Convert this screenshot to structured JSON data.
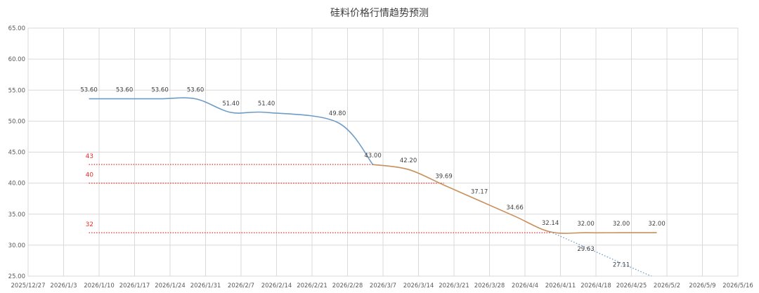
{
  "chart_data": {
    "type": "line",
    "title": "硅料价格行情趋势预测",
    "xlabel": "",
    "ylabel": "",
    "ylim": [
      25,
      65
    ],
    "yticks": [
      "25.00",
      "30.00",
      "35.00",
      "40.00",
      "45.00",
      "50.00",
      "55.00",
      "60.00",
      "65.00"
    ],
    "xlim": [
      "2025-12-27",
      "2026-05-16"
    ],
    "xticks": [
      "2025/12/27",
      "2026/1/3",
      "2026/1/10",
      "2026/1/17",
      "2026/1/24",
      "2026/1/31",
      "2026/2/7",
      "2026/2/14",
      "2026/2/21",
      "2026/2/28",
      "2026/3/7",
      "2026/3/14",
      "2026/3/21",
      "2026/3/28",
      "2026/4/4",
      "2026/4/11",
      "2026/4/18",
      "2026/4/25",
      "2026/5/2",
      "2026/5/9",
      "2026/5/16"
    ],
    "grid": true,
    "legend": "none",
    "series": [
      {
        "color": "#6e9cc6",
        "style": "solid",
        "points": [
          {
            "x": "2026-01-08",
            "y": 53.6,
            "label": "53.60"
          },
          {
            "x": "2026-01-15",
            "y": 53.6,
            "label": "53.60"
          },
          {
            "x": "2026-01-22",
            "y": 53.6,
            "label": "53.60"
          },
          {
            "x": "2026-01-29",
            "y": 53.6,
            "label": "53.60"
          },
          {
            "x": "2026-02-05",
            "y": 51.4,
            "label": "51.40"
          },
          {
            "x": "2026-02-12",
            "y": 51.4,
            "label": "51.40"
          },
          {
            "x": "2026-02-26",
            "y": 49.8,
            "label": "49.80"
          },
          {
            "x": "2026-03-05",
            "y": 43.0,
            "label": "43.00"
          }
        ]
      },
      {
        "color": "#c8905a",
        "style": "solid",
        "points": [
          {
            "x": "2026-03-05",
            "y": 43.0
          },
          {
            "x": "2026-03-12",
            "y": 42.2,
            "label": "42.20"
          },
          {
            "x": "2026-03-19",
            "y": 39.69,
            "label": "39.69"
          },
          {
            "x": "2026-03-26",
            "y": 37.17,
            "label": "37.17"
          },
          {
            "x": "2026-04-02",
            "y": 34.66,
            "label": "34.66"
          },
          {
            "x": "2026-04-09",
            "y": 32.14,
            "label": "32.14"
          },
          {
            "x": "2026-04-16",
            "y": 32.0,
            "label": "32.00"
          },
          {
            "x": "2026-04-23",
            "y": 32.0,
            "label": "32.00"
          },
          {
            "x": "2026-04-30",
            "y": 32.0,
            "label": "32.00"
          }
        ]
      },
      {
        "color": "#6e9cc6",
        "style": "dotted",
        "points": [
          {
            "x": "2026-04-09",
            "y": 32.14
          },
          {
            "x": "2026-04-16",
            "y": 29.63,
            "label": "29.63"
          },
          {
            "x": "2026-04-23",
            "y": 27.11,
            "label": "27.11"
          },
          {
            "x": "2026-04-30",
            "y": 24.6
          }
        ]
      }
    ],
    "reference_lines": [
      {
        "y": 43,
        "label": "43",
        "color": "#e8312f",
        "x_start": "2026-01-08",
        "x_end": "2026-03-05"
      },
      {
        "y": 40,
        "label": "40",
        "color": "#e8312f",
        "x_start": "2026-01-08",
        "x_end": "2026-03-19"
      },
      {
        "y": 32,
        "label": "32",
        "color": "#e8312f",
        "x_start": "2026-01-08",
        "x_end": "2026-04-09"
      }
    ]
  }
}
